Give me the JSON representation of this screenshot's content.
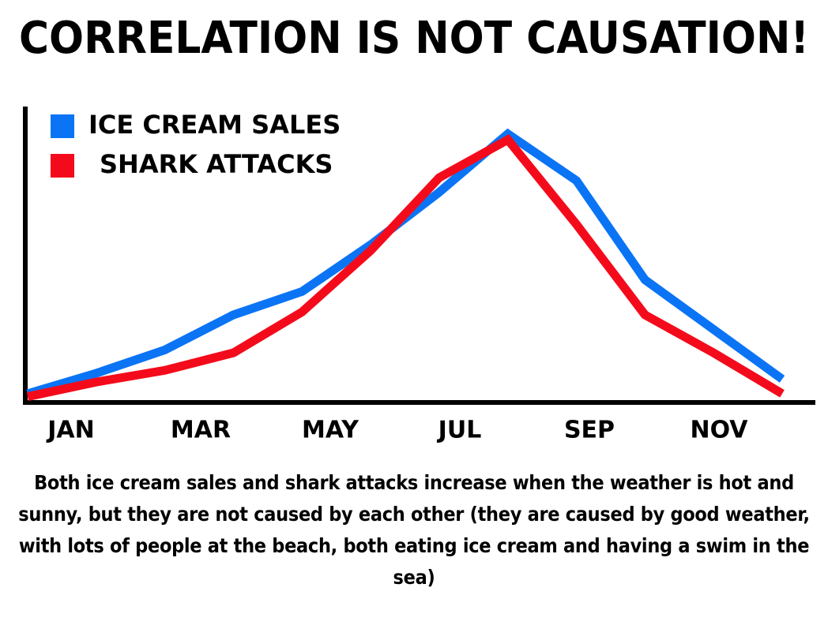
{
  "chart_data": {
    "type": "line",
    "title": "CORRELATION IS NOT CAUSATION!",
    "categories": [
      "JAN",
      null,
      "MAR",
      null,
      "MAY",
      null,
      "JUL",
      null,
      "SEP",
      null,
      "NOV",
      null
    ],
    "series": [
      {
        "name": "ICE CREAM SALES",
        "color": "#0a74f5",
        "values": [
          3,
          10,
          18,
          30,
          38,
          54,
          72,
          92,
          76,
          42,
          25,
          8
        ]
      },
      {
        "name": "SHARK ATTACKS",
        "color": "#f40b1b",
        "values": [
          2,
          7,
          11,
          17,
          31,
          52,
          77,
          90,
          61,
          30,
          17,
          3
        ]
      }
    ],
    "ylim": [
      0,
      100
    ],
    "legend": "upper left",
    "caption": "Both ice cream sales and shark attacks increase when the weather is hot and sunny, but they are not caused by each other (they are caused by good weather, with lots of people at the beach, both eating ice cream and having a swim in the sea)"
  }
}
